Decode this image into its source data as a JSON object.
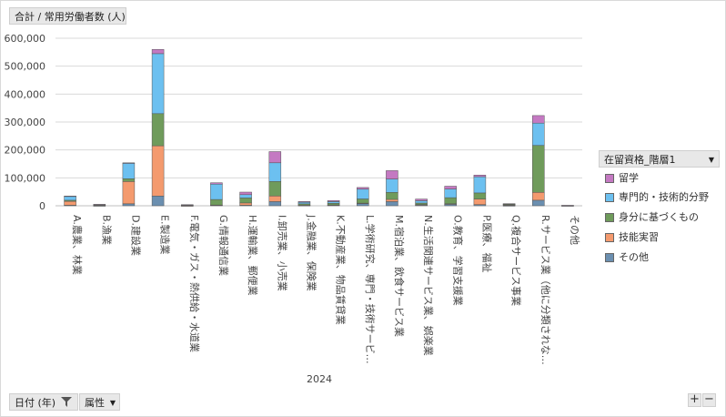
{
  "value_field_label": "合計 / 常用労働者数 (人)",
  "filters": {
    "date_label": "日付 (年)",
    "attribute_label": "属性"
  },
  "zoom": {
    "in": "+",
    "out": "−"
  },
  "legend": {
    "title": "在留資格_階層1",
    "items": [
      {
        "label": "留学",
        "color": "#c479c2"
      },
      {
        "label": "専門的・技術的分野",
        "color": "#6cc0f0"
      },
      {
        "label": "身分に基づくもの",
        "color": "#6f9b5b"
      },
      {
        "label": "技能実習",
        "color": "#f49a6e"
      },
      {
        "label": "その他",
        "color": "#6b8fb0"
      }
    ]
  },
  "chart_data": {
    "type": "bar",
    "stacked": true,
    "xlabel": "2024",
    "ylabel": "",
    "ylim": [
      0,
      600000
    ],
    "y_ticks": [
      "0",
      "100,000",
      "200,000",
      "300,000",
      "400,000",
      "500,000",
      "600,000"
    ],
    "grid": true,
    "legend_position": "right",
    "categories": [
      "A.農業、林業",
      "B.漁業",
      "D.建設業",
      "E.製造業",
      "F.電気・ガス・熱供給・水道業",
      "G.情報通信業",
      "H.運輸業、郵便業",
      "I.卸売業、小売業",
      "J.金融業、保険業",
      "K.不動産業、物品賃貸業",
      "L.学術研究、専門・技術サービ…",
      "M.宿泊業、飲食サービス業",
      "N.生活関連サービス業、娯楽業",
      "O.教育、学習支援業",
      "P.医療、福祉",
      "Q.複合サービス事業",
      "R.サービス業（他に分類されな…",
      "その他"
    ],
    "series": [
      {
        "name": "その他",
        "values": [
          2000,
          300,
          7000,
          35000,
          300,
          2000,
          2000,
          15000,
          1500,
          2000,
          8000,
          15000,
          3000,
          6000,
          4000,
          500,
          20000,
          300
        ]
      },
      {
        "name": "技能実習",
        "values": [
          14000,
          1500,
          80000,
          180000,
          300,
          500,
          8000,
          20000,
          300,
          800,
          1500,
          8000,
          1000,
          1000,
          20000,
          2000,
          28000,
          0
        ]
      },
      {
        "name": "身分に基づくもの",
        "values": [
          4000,
          1500,
          10000,
          115000,
          1500,
          20000,
          18000,
          52000,
          5000,
          6000,
          15000,
          25000,
          6000,
          22000,
          22000,
          3000,
          168000,
          300
        ]
      },
      {
        "name": "専門的・技術的分野",
        "values": [
          14000,
          1500,
          55000,
          215000,
          1500,
          55000,
          12000,
          67000,
          6000,
          6000,
          35000,
          48000,
          8000,
          31000,
          58000,
          1500,
          80000,
          700
        ]
      },
      {
        "name": "留学",
        "values": [
          1000,
          200,
          2000,
          15000,
          400,
          5000,
          9000,
          40000,
          2500,
          4000,
          6000,
          30000,
          6000,
          10000,
          6000,
          500,
          27000,
          200
        ]
      }
    ]
  }
}
